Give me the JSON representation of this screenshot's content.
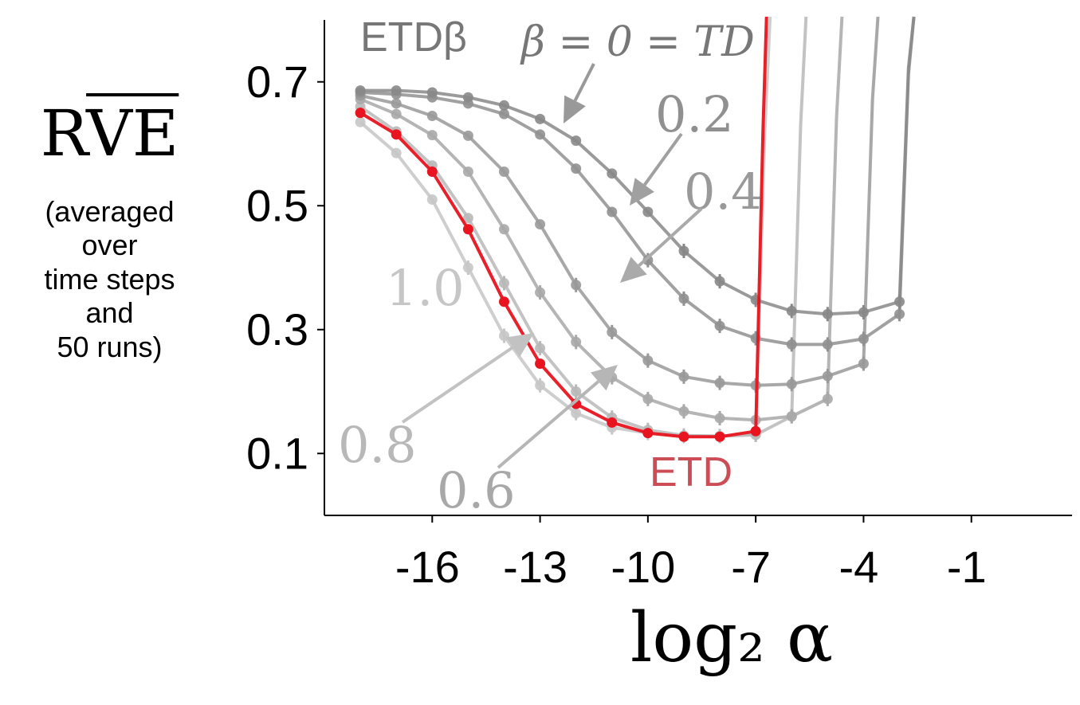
{
  "chart_data": {
    "type": "line",
    "ylabel_main": "RVE",
    "ylabel_sub_lines": [
      "(averaged",
      "over",
      "time steps",
      "and",
      "50 runs)"
    ],
    "xlabel": "log₂ α",
    "xlim": [
      -19,
      1.8
    ],
    "ylim": [
      0.0,
      0.8
    ],
    "xticks": [
      -16,
      -13,
      -10,
      -7,
      -4,
      -1
    ],
    "xtick_labels": [
      "-16",
      "-13",
      "-10",
      "-7",
      "-4",
      "-1"
    ],
    "yticks": [
      0.1,
      0.3,
      0.5,
      0.7
    ],
    "ytick_labels": [
      "0.1",
      "0.3",
      "0.5",
      "0.7"
    ],
    "grid": false,
    "annotations": {
      "etd_beta": "ETDβ",
      "beta_zero": "β = 0 = TD",
      "b02": "0.2",
      "b04": "0.4",
      "b06": "0.6",
      "b08": "0.8",
      "b10": "1.0",
      "etd": "ETD"
    },
    "colors": {
      "etd": "#e8141f",
      "etd_label": "#cc4d55",
      "beta0": "#888888",
      "beta02": "#909090",
      "beta04": "#999999",
      "beta06": "#a8a8a8",
      "beta08": "#b8b8b8",
      "beta10": "#c6c6c6",
      "etd_beta_label": "#777777",
      "axis": "#000000"
    },
    "series": [
      {
        "key": "beta0",
        "x": [
          -18,
          -17,
          -16,
          -15,
          -14,
          -13,
          -12,
          -11,
          -10,
          -9,
          -8,
          -7,
          -6,
          -5,
          -4,
          -3
        ],
        "y": [
          0.686,
          0.686,
          0.683,
          0.675,
          0.662,
          0.64,
          0.605,
          0.552,
          0.49,
          0.427,
          0.378,
          0.348,
          0.33,
          0.325,
          0.328,
          0.345
        ],
        "diverge_x": -2.6
      },
      {
        "key": "beta02",
        "x": [
          -18,
          -17,
          -16,
          -15,
          -14,
          -13,
          -12,
          -11,
          -10,
          -9,
          -8,
          -7,
          -6,
          -5,
          -4,
          -3
        ],
        "y": [
          0.683,
          0.68,
          0.675,
          0.665,
          0.648,
          0.615,
          0.56,
          0.49,
          0.412,
          0.35,
          0.306,
          0.286,
          0.276,
          0.276,
          0.285,
          0.325
        ],
        "diverge_x": -2.6
      },
      {
        "key": "beta04",
        "x": [
          -18,
          -17,
          -16,
          -15,
          -14,
          -13,
          -12,
          -11,
          -10,
          -9,
          -8,
          -7,
          -6,
          -5,
          -4
        ],
        "y": [
          0.678,
          0.665,
          0.645,
          0.613,
          0.555,
          0.47,
          0.372,
          0.296,
          0.25,
          0.224,
          0.214,
          0.21,
          0.212,
          0.225,
          0.245
        ],
        "diverge_x": -3.6
      },
      {
        "key": "beta06",
        "x": [
          -18,
          -17,
          -16,
          -15,
          -14,
          -13,
          -12,
          -11,
          -10,
          -9,
          -8,
          -7,
          -6,
          -5
        ],
        "y": [
          0.672,
          0.648,
          0.614,
          0.555,
          0.462,
          0.36,
          0.28,
          0.223,
          0.188,
          0.168,
          0.157,
          0.154,
          0.16,
          0.188
        ],
        "diverge_x": -4.6
      },
      {
        "key": "beta08",
        "x": [
          -18,
          -17,
          -16,
          -15,
          -14,
          -13,
          -12,
          -11,
          -10,
          -9,
          -8,
          -7,
          -6
        ],
        "y": [
          0.66,
          0.62,
          0.565,
          0.48,
          0.375,
          0.27,
          0.2,
          0.158,
          0.138,
          0.129,
          0.128,
          0.13,
          0.16
        ],
        "diverge_x": -5.6
      },
      {
        "key": "beta10",
        "x": [
          -18,
          -17,
          -16,
          -15,
          -14,
          -13,
          -12,
          -11,
          -10,
          -9,
          -8,
          -7
        ],
        "y": [
          0.635,
          0.585,
          0.51,
          0.4,
          0.29,
          0.21,
          0.165,
          0.142,
          0.133,
          0.128,
          0.128,
          0.132
        ],
        "diverge_x": -6.6
      },
      {
        "key": "etd",
        "x": [
          -18,
          -17,
          -16,
          -15,
          -14,
          -13,
          -12,
          -11,
          -10,
          -9,
          -8,
          -7
        ],
        "y": [
          0.65,
          0.615,
          0.555,
          0.462,
          0.345,
          0.245,
          0.18,
          0.15,
          0.133,
          0.127,
          0.127,
          0.136
        ],
        "diverge_x": -6.7
      }
    ]
  }
}
